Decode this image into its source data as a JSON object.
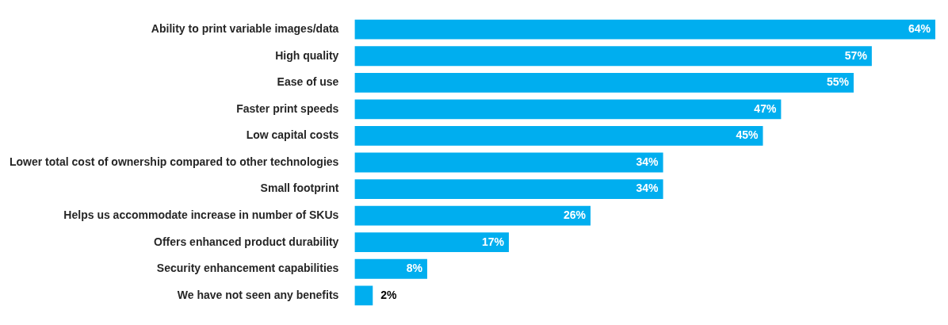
{
  "chart_data": {
    "type": "bar",
    "orientation": "horizontal",
    "categories": [
      "Ability to print variable images/data",
      "High quality",
      "Ease of use",
      "Faster print speeds",
      "Low capital costs",
      "Lower total cost of ownership compared to other technologies",
      "Small footprint",
      "Helps us accommodate increase in number of SKUs",
      "Offers enhanced product durability",
      "Security enhancement capabilities",
      "We have not seen any benefits"
    ],
    "values": [
      64,
      57,
      55,
      47,
      45,
      34,
      34,
      26,
      17,
      8,
      2
    ],
    "value_labels": [
      "64%",
      "57%",
      "55%",
      "47%",
      "45%",
      "34%",
      "34%",
      "26%",
      "17%",
      "8%",
      "2%"
    ],
    "color": "#00aeef",
    "tick_labels": "y",
    "grid": false,
    "legend": false
  }
}
